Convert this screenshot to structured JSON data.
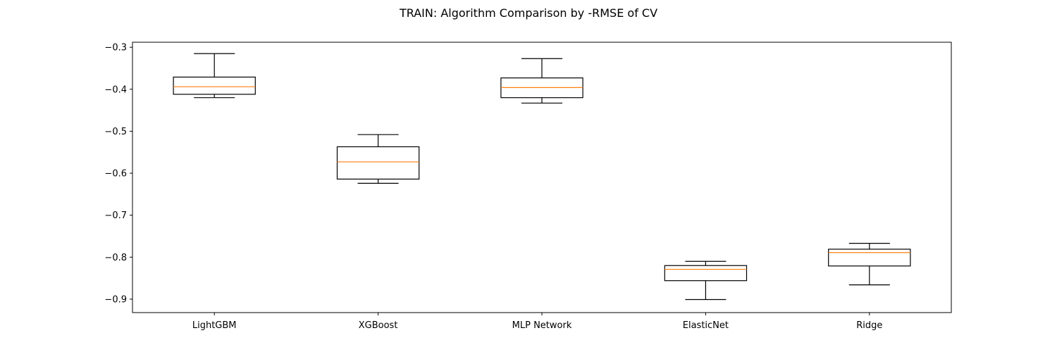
{
  "chart_data": {
    "type": "box",
    "title": "TRAIN: Algorithm Comparison by -RMSE of CV",
    "xlabel": "",
    "ylabel": "",
    "categories": [
      "LightGBM",
      "XGBoost",
      "MLP Network",
      "ElasticNet",
      "Ridge"
    ],
    "boxes": [
      {
        "name": "LightGBM",
        "whisker_low": -0.42,
        "q1": -0.412,
        "median": -0.394,
        "q3": -0.371,
        "whisker_high": -0.315
      },
      {
        "name": "XGBoost",
        "whisker_low": -0.624,
        "q1": -0.614,
        "median": -0.573,
        "q3": -0.537,
        "whisker_high": -0.508
      },
      {
        "name": "MLP Network",
        "whisker_low": -0.433,
        "q1": -0.42,
        "median": -0.396,
        "q3": -0.373,
        "whisker_high": -0.327
      },
      {
        "name": "ElasticNet",
        "whisker_low": -0.901,
        "q1": -0.856,
        "median": -0.829,
        "q3": -0.82,
        "whisker_high": -0.81
      },
      {
        "name": "Ridge",
        "whisker_low": -0.866,
        "q1": -0.821,
        "median": -0.789,
        "q3": -0.781,
        "whisker_high": -0.767
      }
    ],
    "ylim": [
      -0.932,
      -0.288
    ],
    "yticks": [
      -0.3,
      -0.4,
      -0.5,
      -0.6,
      -0.7,
      -0.8,
      -0.9
    ],
    "ytick_labels": [
      "−0.3",
      "−0.4",
      "−0.5",
      "−0.6",
      "−0.7",
      "−0.8",
      "−0.9"
    ],
    "grid": false,
    "colors": {
      "box": "#000000",
      "median": "#ff7f0e"
    }
  }
}
